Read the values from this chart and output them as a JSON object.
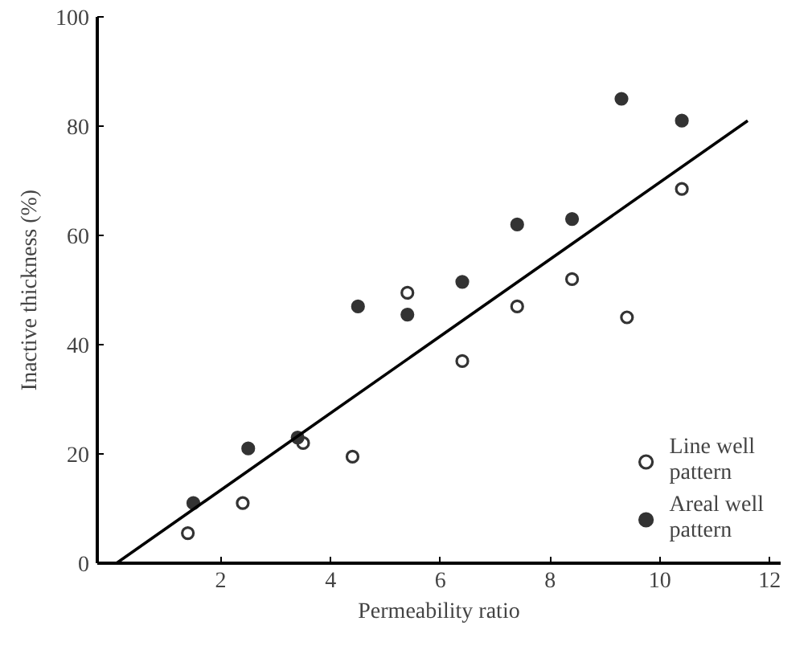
{
  "chart_data": {
    "type": "scatter",
    "xlabel": "Permeability ratio",
    "ylabel": "Inactive thickness (%)",
    "xlim": [
      -0.25,
      12.2
    ],
    "ylim": [
      0,
      100
    ],
    "xticks": [
      2,
      4,
      6,
      8,
      10,
      12
    ],
    "yticks": [
      0,
      20,
      40,
      60,
      80,
      100
    ],
    "grid": false,
    "legend": "bottom right",
    "series": [
      {
        "name": "Line well pattern",
        "color": "#333333",
        "marker": "circle",
        "x": [
          1.4,
          2.4,
          3.5,
          4.4,
          5.4,
          6.4,
          7.4,
          8.4,
          9.4,
          10.4
        ],
        "values": [
          5.5,
          11,
          22,
          19.5,
          49.5,
          37,
          47,
          52,
          45,
          68.5
        ]
      },
      {
        "name": "Areal well pattern",
        "color": "#333333",
        "marker": "circle",
        "x": [
          1.5,
          2.5,
          3.4,
          4.5,
          5.4,
          6.4,
          7.4,
          8.4,
          9.3,
          10.4
        ],
        "values": [
          11,
          21,
          23,
          47,
          45.5,
          51.5,
          62,
          63,
          85,
          81
        ]
      },
      {
        "type": "line",
        "marker": "none",
        "color": "#000000",
        "x": [
          0.1,
          11.6
        ],
        "values": [
          0,
          81
        ]
      }
    ]
  }
}
